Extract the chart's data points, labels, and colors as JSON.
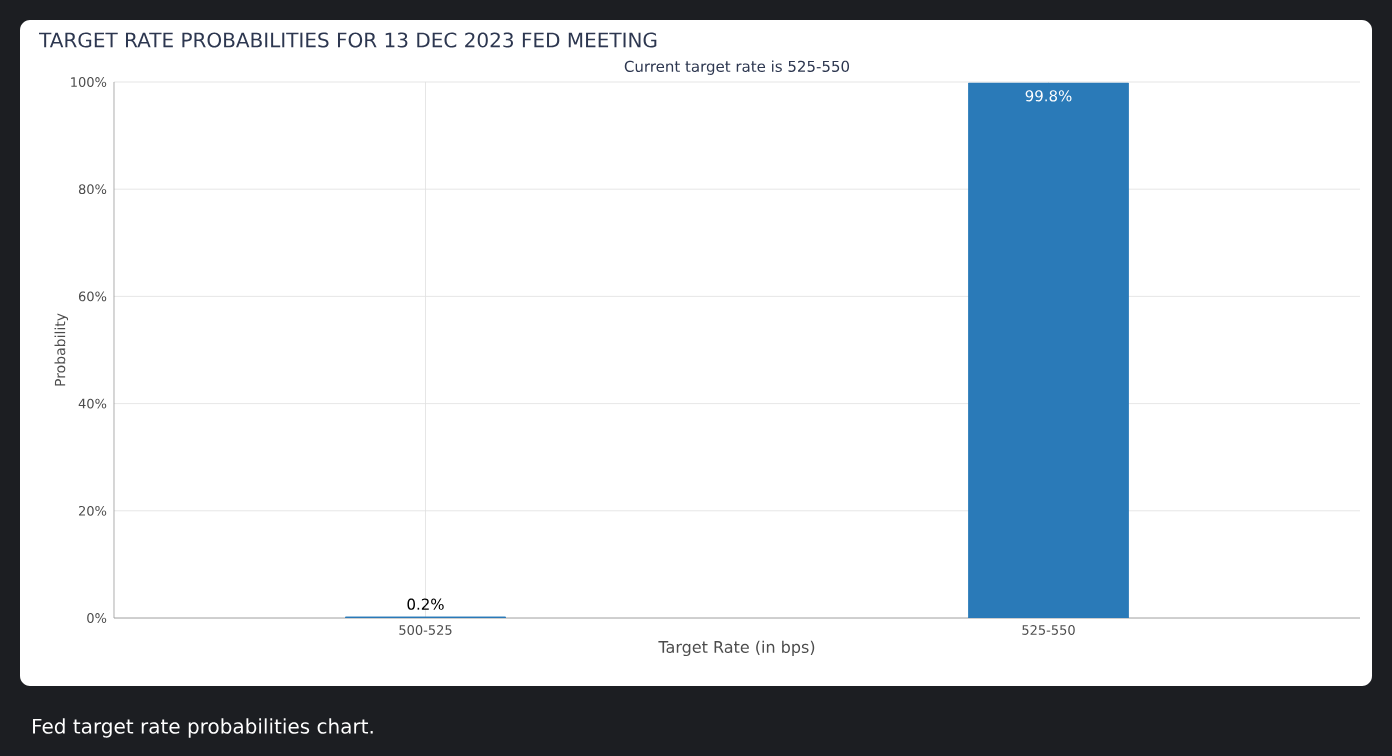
{
  "chart_data": {
    "type": "bar",
    "title": "TARGET RATE PROBABILITIES FOR 13 DEC 2023 FED MEETING",
    "subtitle": "Current target rate is 525-550",
    "xlabel": "Target Rate (in bps)",
    "ylabel": "Probability",
    "categories": [
      "500-525",
      "525-550"
    ],
    "values": [
      0.2,
      99.8
    ],
    "color": "#2a7ab8",
    "value_labels": [
      "0.2%",
      "99.8%"
    ],
    "ylim": [
      0,
      100
    ],
    "yticks": [
      {
        "value": 0,
        "label": "0%"
      },
      {
        "value": 20,
        "label": "20%"
      },
      {
        "value": 40,
        "label": "40%"
      },
      {
        "value": 60,
        "label": "60%"
      },
      {
        "value": 80,
        "label": "80%"
      },
      {
        "value": 100,
        "label": "100%"
      }
    ],
    "grid": true,
    "annotations": [
      "Fed target rate probabilities chart."
    ]
  }
}
